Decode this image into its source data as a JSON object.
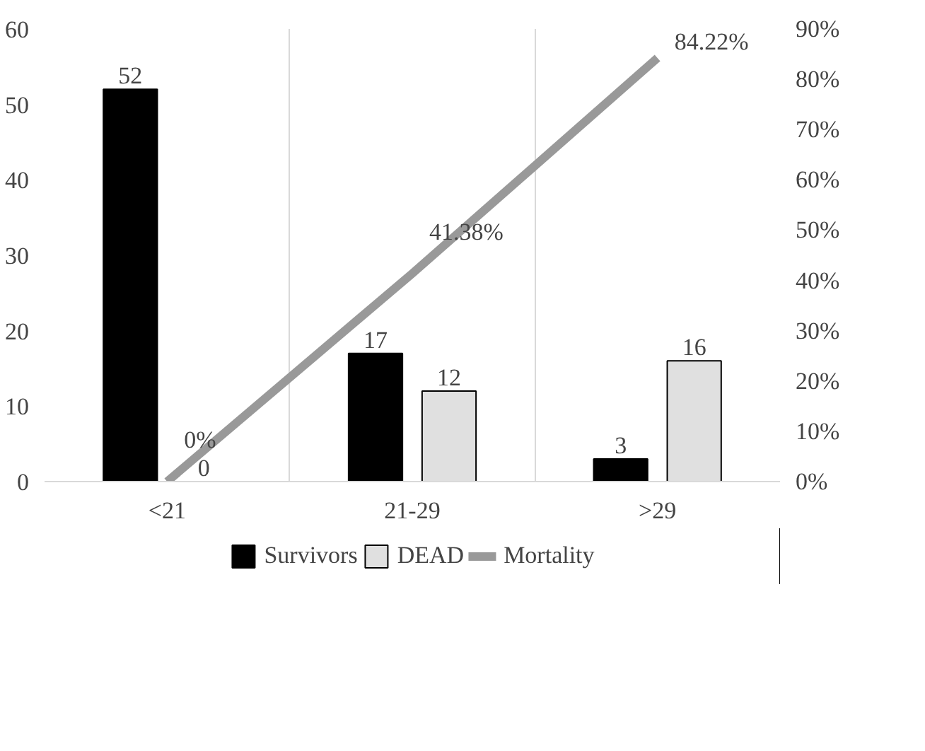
{
  "chart_data": {
    "type": "bar",
    "categories": [
      "<21",
      "21-29",
      ">29"
    ],
    "series": [
      {
        "name": "Survivors",
        "color": "#000000",
        "values": [
          52,
          17,
          3
        ],
        "value_labels": [
          "52",
          "17",
          "3"
        ]
      },
      {
        "name": "DEAD",
        "color": "#e0e0e0",
        "values": [
          0,
          12,
          16
        ],
        "value_labels": [
          "0",
          "12",
          "16"
        ]
      },
      {
        "name": "Mortality",
        "type": "line",
        "axis": "y2",
        "color": "#999999",
        "values": [
          0,
          41.38,
          84.22
        ],
        "value_labels": [
          "0%",
          "41.38%",
          "84.22%"
        ]
      }
    ],
    "ylim": [
      0,
      60
    ],
    "yticks": [
      0,
      10,
      20,
      30,
      40,
      50,
      60
    ],
    "y2lim": [
      0,
      90
    ],
    "y2ticks": [
      {
        "value": 0,
        "label": "0%"
      },
      {
        "value": 10,
        "label": "10%"
      },
      {
        "value": 20,
        "label": "20%"
      },
      {
        "value": 30,
        "label": "30%"
      },
      {
        "value": 40,
        "label": "40%"
      },
      {
        "value": 50,
        "label": "50%"
      },
      {
        "value": 60,
        "label": "60%"
      },
      {
        "value": 70,
        "label": "70%"
      },
      {
        "value": 80,
        "label": "80%"
      },
      {
        "value": 90,
        "label": "90%"
      }
    ],
    "grid": "x",
    "legend": "bottom",
    "marker": "none",
    "line_style": "solid"
  }
}
